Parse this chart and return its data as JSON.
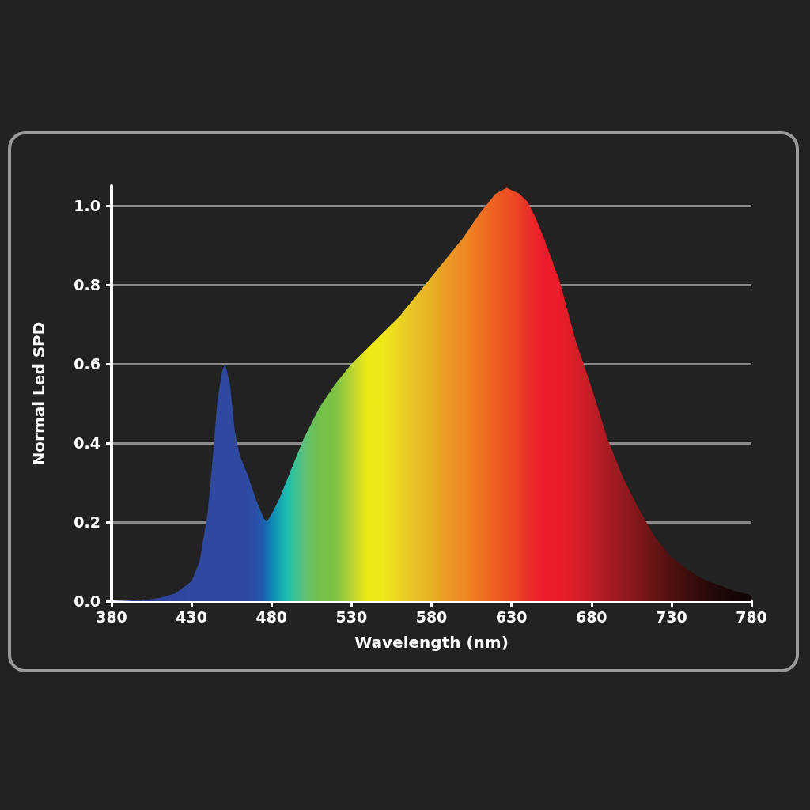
{
  "chart_data": {
    "type": "area",
    "xlabel": "Wavelength (nm)",
    "ylabel": "Normal Led SPD",
    "xlim": [
      380,
      780
    ],
    "xticks": [
      380,
      430,
      480,
      530,
      580,
      630,
      680,
      730,
      780
    ],
    "ylim": [
      0,
      1.05
    ],
    "yticks": [
      {
        "value": 0,
        "label": "0.0"
      },
      0.2,
      0.4,
      0.6,
      0.8,
      {
        "value": 1,
        "label": "1.0"
      }
    ],
    "grid": "y",
    "marker": "none",
    "series": [
      {
        "x": [
          380,
          400,
          410,
          420,
          430,
          435,
          440,
          443,
          446,
          449,
          451,
          454,
          457,
          460,
          465,
          470,
          475,
          477,
          480,
          485,
          490,
          495,
          500,
          505,
          510,
          515,
          520,
          530,
          540,
          550,
          560,
          570,
          580,
          590,
          600,
          610,
          620,
          627,
          635,
          640,
          645,
          650,
          660,
          670,
          680,
          690,
          700,
          710,
          720,
          730,
          740,
          750,
          760,
          770,
          780
        ],
        "values": [
          0,
          0.003,
          0.008,
          0.02,
          0.05,
          0.1,
          0.22,
          0.35,
          0.5,
          0.58,
          0.6,
          0.55,
          0.43,
          0.37,
          0.32,
          0.26,
          0.21,
          0.2,
          0.22,
          0.26,
          0.31,
          0.36,
          0.41,
          0.45,
          0.49,
          0.52,
          0.55,
          0.6,
          0.64,
          0.68,
          0.72,
          0.77,
          0.82,
          0.87,
          0.92,
          0.98,
          1.03,
          1.045,
          1.03,
          1.01,
          0.97,
          0.92,
          0.81,
          0.66,
          0.54,
          0.41,
          0.31,
          0.23,
          0.16,
          0.11,
          0.08,
          0.055,
          0.04,
          0.025,
          0.015
        ],
        "colors": [
          "#2b3a8f",
          "#2e3f97",
          "#2f429b",
          "#30459e",
          "#2f48a0",
          "#2f48a0",
          "#2f48a0",
          "#2f48a0",
          "#2f48a0",
          "#2f48a0",
          "#2f48a0",
          "#2f48a0",
          "#2f48a0",
          "#2f48a0",
          "#2e4aa2",
          "#2a4fa6",
          "#1f5fb0",
          "#166fb3",
          "#0e86b5",
          "#14a5b2",
          "#1fbfae",
          "#3cc194",
          "#5cc07a",
          "#68c060",
          "#73c04a",
          "#78c146",
          "#7dc242",
          "#b8d334",
          "#eee915",
          "#efe81a",
          "#ebd422",
          "#e9bf26",
          "#e9b125",
          "#ec9a25",
          "#ee8a24",
          "#ef7424",
          "#ee5f24",
          "#ed5025",
          "#ec4026",
          "#ea3028",
          "#ec2429",
          "#ee1c2a",
          "#ea1c2a",
          "#d81e27",
          "#c41f26",
          "#a91b22",
          "#931a20",
          "#7e171b",
          "#661315",
          "#501010",
          "#3d0e0d",
          "#2c0b0a",
          "#1d0807",
          "#140605",
          "#0f0505"
        ]
      }
    ]
  }
}
